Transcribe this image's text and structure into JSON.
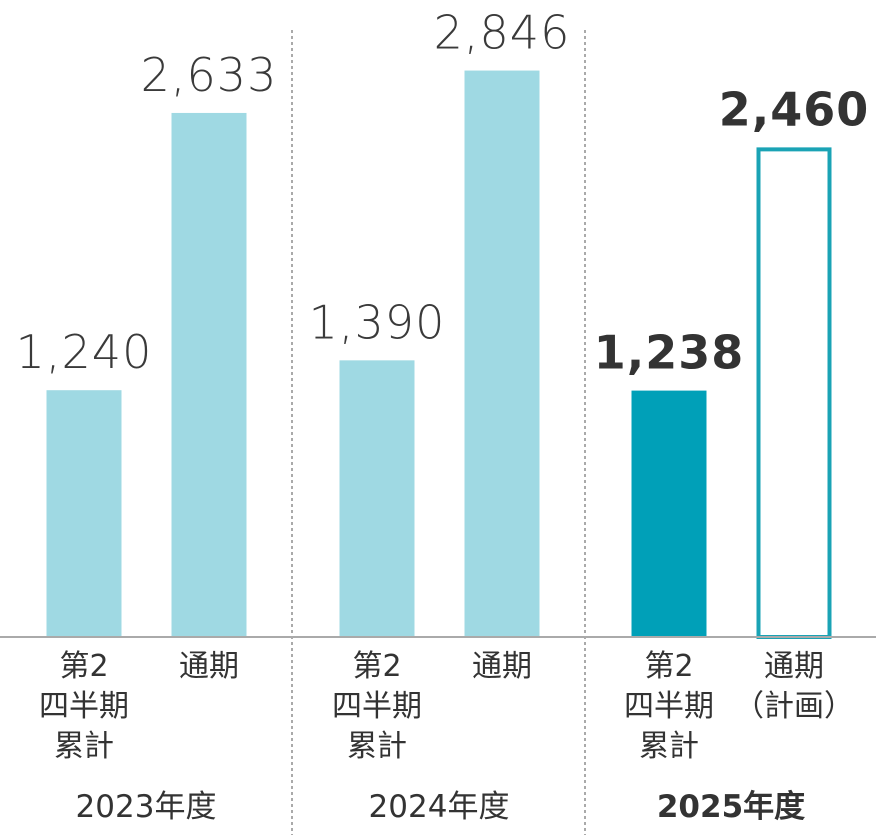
{
  "chart_data": {
    "type": "bar",
    "groups": [
      {
        "label": "2023年度",
        "bars": [
          {
            "category": "第2\n四半期\n累計",
            "value": 1240,
            "label": "1,240",
            "style": "light"
          },
          {
            "category": "通期",
            "value": 2633,
            "label": "2,633",
            "style": "light"
          }
        ]
      },
      {
        "label": "2024年度",
        "bars": [
          {
            "category": "第2\n四半期\n累計",
            "value": 1390,
            "label": "1,390",
            "style": "light"
          },
          {
            "category": "通期",
            "value": 2846,
            "label": "2,846",
            "style": "light"
          }
        ]
      },
      {
        "label": "2025年度",
        "bold": true,
        "bars": [
          {
            "category": "第2\n四半期\n累計",
            "value": 1238,
            "label": "1,238",
            "style": "dark"
          },
          {
            "category": "通期\n（計画）",
            "value": 2460,
            "label": "2,460",
            "style": "outline"
          }
        ]
      }
    ],
    "ylim": [
      0,
      3100
    ],
    "grid": false,
    "legend": "none",
    "colors": {
      "light": "#9fd9e3",
      "dark": "#00a0b8",
      "outline": "#1aa3b5",
      "axis": "#aaaaaa",
      "separator": "#555555"
    }
  }
}
